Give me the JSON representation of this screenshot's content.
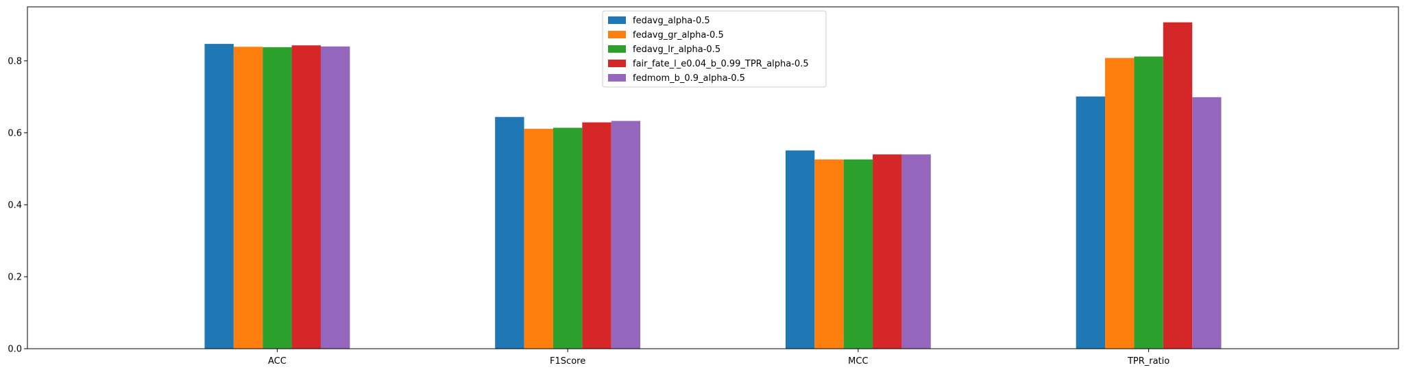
{
  "chart_data": {
    "type": "bar",
    "title": "",
    "xlabel": "",
    "ylabel": "",
    "categories": [
      "ACC",
      "F1Score",
      "MCC",
      "TPR_ratio"
    ],
    "ylim": [
      0,
      0.95
    ],
    "yticks": [
      "0.0",
      "0.2",
      "0.4",
      "0.6",
      "0.8"
    ],
    "grid": false,
    "legend_position": "top-center",
    "series": [
      {
        "name": "fedavg_alpha-0.5",
        "color": "#1f77b4",
        "values": [
          0.847,
          0.644,
          0.551,
          0.701
        ]
      },
      {
        "name": "fedavg_gr_alpha-0.5",
        "color": "#ff7f0e",
        "values": [
          0.839,
          0.611,
          0.526,
          0.808
        ]
      },
      {
        "name": "fedavg_lr_alpha-0.5",
        "color": "#2ca02c",
        "values": [
          0.838,
          0.614,
          0.526,
          0.812
        ]
      },
      {
        "name": "fair_fate_l_e0.04_b_0.99_TPR_alpha-0.5",
        "color": "#d62728",
        "values": [
          0.843,
          0.629,
          0.54,
          0.907
        ]
      },
      {
        "name": "fedmom_b_0.9_alpha-0.5",
        "color": "#9467bd",
        "values": [
          0.84,
          0.633,
          0.54,
          0.699
        ]
      }
    ]
  }
}
